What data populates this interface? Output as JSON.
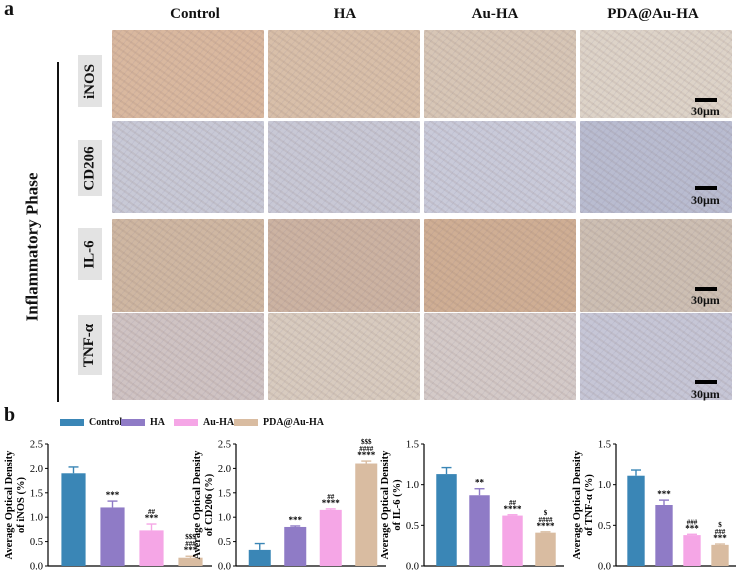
{
  "panel_a": {
    "letter": "a",
    "phase_label": "Inflammatory Phase",
    "columns": [
      "Control",
      "HA",
      "Au-HA",
      "PDA@Au-HA"
    ],
    "rows": [
      "iNOS",
      "CD206",
      "IL-6",
      "TNF-α"
    ],
    "scale_label": "30μm",
    "stain_colors": {
      "iNOS": [
        "#d9b89f",
        "#d8bfa9",
        "#d7c6b6",
        "#ddd3c8"
      ],
      "CD206": [
        "#c8c9d6",
        "#c8c8d5",
        "#c9cad9",
        "#b9bcd0"
      ],
      "IL-6": [
        "#cfb7a2",
        "#ccb3a2",
        "#cfae94",
        "#cdbfb3"
      ],
      "TNF-α": [
        "#cfc3c3",
        "#d8cbbf",
        "#d4cac8",
        "#c6c6d6"
      ]
    }
  },
  "panel_b": {
    "letter": "b",
    "legend": [
      {
        "name": "Control",
        "color": "#3a86b6"
      },
      {
        "name": "HA",
        "color": "#8f7bc6"
      },
      {
        "name": "Au-HA",
        "color": "#f5a6e6"
      },
      {
        "name": "PDA@Au-HA",
        "color": "#d9bca1"
      }
    ]
  },
  "chart_data": [
    {
      "type": "bar",
      "ylabel": "Average Optical Density of iNOS (%)",
      "categories": [
        "Control",
        "HA",
        "Au-HA",
        "PDA@Au-HA"
      ],
      "values": [
        1.9,
        1.2,
        0.73,
        0.17
      ],
      "errors": [
        0.13,
        0.13,
        0.13,
        0.03
      ],
      "ylim": [
        0,
        2.5
      ],
      "yticks": [
        "0.0",
        "0.5",
        "1.0",
        "1.5",
        "2.0",
        "2.5"
      ],
      "annotations": [
        [],
        [
          "***"
        ],
        [
          "##",
          "***"
        ],
        [
          "$$$",
          "###",
          "***"
        ]
      ]
    },
    {
      "type": "bar",
      "ylabel": "Average Optical Density of CD206 (%)",
      "categories": [
        "Control",
        "HA",
        "Au-HA",
        "PDA@Au-HA"
      ],
      "values": [
        0.33,
        0.8,
        1.15,
        2.1
      ],
      "errors": [
        0.13,
        0.02,
        0.02,
        0.05
      ],
      "ylim": [
        0,
        2.5
      ],
      "yticks": [
        "0.0",
        "0.5",
        "1.0",
        "1.5",
        "2.0",
        "2.5"
      ],
      "annotations": [
        [],
        [
          "***"
        ],
        [
          "##",
          "****"
        ],
        [
          "$$$",
          "####",
          "****"
        ]
      ]
    },
    {
      "type": "bar",
      "ylabel": "Average Optical Density of IL-6 (%)",
      "categories": [
        "Control",
        "HA",
        "Au-HA",
        "PDA@Au-HA"
      ],
      "values": [
        1.13,
        0.87,
        0.62,
        0.41
      ],
      "errors": [
        0.08,
        0.08,
        0.01,
        0.01
      ],
      "ylim": [
        0,
        1.5
      ],
      "yticks": [
        "0.0",
        "0.5",
        "1.0",
        "1.5"
      ],
      "annotations": [
        [],
        [
          "**"
        ],
        [
          "##",
          "****"
        ],
        [
          "$",
          "####",
          "****"
        ]
      ]
    },
    {
      "type": "bar",
      "ylabel": "Average Optical Density of TNF-α (%)",
      "categories": [
        "Control",
        "HA",
        "Au-HA",
        "PDA@Au-HA"
      ],
      "values": [
        1.11,
        0.75,
        0.38,
        0.26
      ],
      "errors": [
        0.07,
        0.06,
        0.01,
        0.01
      ],
      "ylim": [
        0,
        1.5
      ],
      "yticks": [
        "0.0",
        "0.5",
        "1.0",
        "1.5"
      ],
      "annotations": [
        [],
        [
          "***"
        ],
        [
          "###",
          "***"
        ],
        [
          "$",
          "###",
          "***"
        ]
      ]
    }
  ]
}
